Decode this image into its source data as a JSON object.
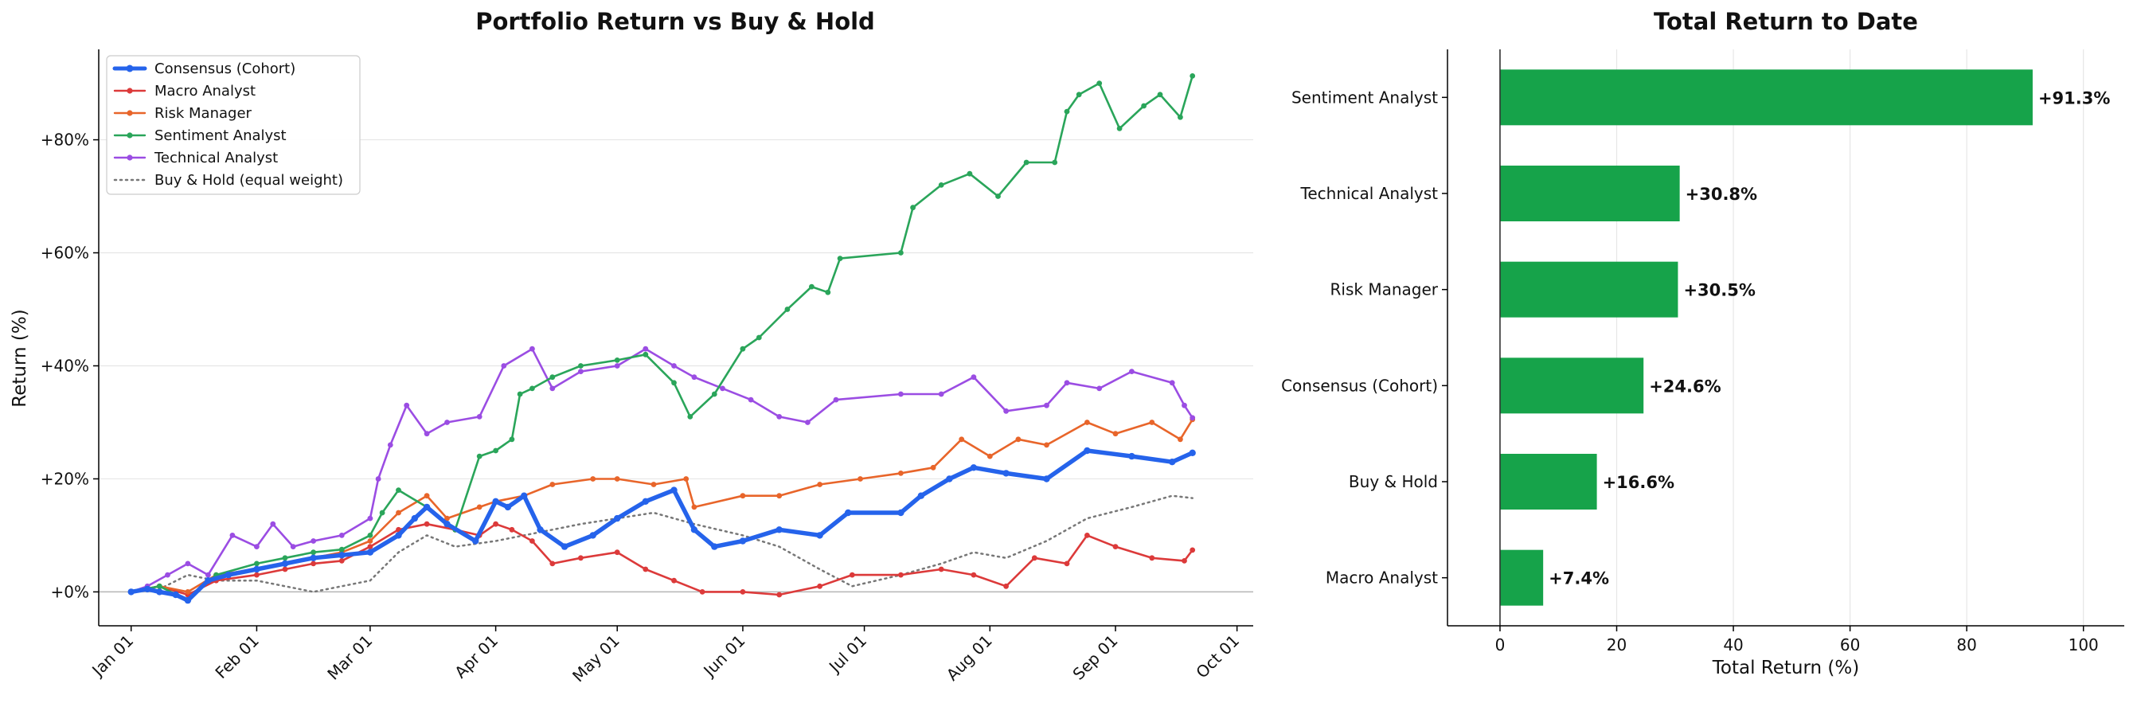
{
  "chart_data": [
    {
      "type": "line",
      "title": "Portfolio Return vs Buy & Hold",
      "xlabel": "",
      "ylabel": "Return (%)",
      "x_ticks": [
        "Jan 01",
        "Feb 01",
        "Mar 01",
        "Apr 01",
        "May 01",
        "Jun 01",
        "Jul 01",
        "Aug 01",
        "Sep 01",
        "Oct 01"
      ],
      "y_ticks": [
        "+0%",
        "+20%",
        "+40%",
        "+60%",
        "+80%"
      ],
      "ylim": [
        -6,
        96
      ],
      "xlim": [
        "2024-12-24",
        "2025-10-05"
      ],
      "grid": "horizontal",
      "legend_position": "top-left",
      "series": [
        {
          "name": "Consensus (Cohort)",
          "color": "#2563eb",
          "style": "bold",
          "points": [
            [
              "2025-01-01",
              0
            ],
            [
              "2025-01-05",
              0.5
            ],
            [
              "2025-01-08",
              0
            ],
            [
              "2025-01-12",
              -0.5
            ],
            [
              "2025-01-15",
              -1.5
            ],
            [
              "2025-01-20",
              2
            ],
            [
              "2025-01-25",
              3
            ],
            [
              "2025-02-01",
              4
            ],
            [
              "2025-02-08",
              5
            ],
            [
              "2025-02-15",
              6
            ],
            [
              "2025-02-22",
              6.5
            ],
            [
              "2025-03-01",
              7
            ],
            [
              "2025-03-08",
              10
            ],
            [
              "2025-03-12",
              13
            ],
            [
              "2025-03-15",
              15
            ],
            [
              "2025-03-20",
              12
            ],
            [
              "2025-03-27",
              9
            ],
            [
              "2025-04-01",
              16
            ],
            [
              "2025-04-04",
              15
            ],
            [
              "2025-04-08",
              17
            ],
            [
              "2025-04-12",
              11
            ],
            [
              "2025-04-18",
              8
            ],
            [
              "2025-04-25",
              10
            ],
            [
              "2025-05-01",
              13
            ],
            [
              "2025-05-08",
              16
            ],
            [
              "2025-05-15",
              18
            ],
            [
              "2025-05-20",
              11
            ],
            [
              "2025-05-25",
              8
            ],
            [
              "2025-06-01",
              9
            ],
            [
              "2025-06-10",
              11
            ],
            [
              "2025-06-20",
              10
            ],
            [
              "2025-06-27",
              14
            ],
            [
              "2025-07-10",
              14
            ],
            [
              "2025-07-15",
              17
            ],
            [
              "2025-07-22",
              20
            ],
            [
              "2025-07-28",
              22
            ],
            [
              "2025-08-05",
              21
            ],
            [
              "2025-08-15",
              20
            ],
            [
              "2025-08-25",
              25
            ],
            [
              "2025-09-05",
              24
            ],
            [
              "2025-09-15",
              23
            ],
            [
              "2025-09-20",
              24.6
            ]
          ]
        },
        {
          "name": "Macro Analyst",
          "color": "#dc3a3a",
          "style": "marker",
          "points": [
            [
              "2025-01-01",
              0
            ],
            [
              "2025-01-08",
              1
            ],
            [
              "2025-01-15",
              -0.5
            ],
            [
              "2025-01-22",
              2
            ],
            [
              "2025-02-01",
              3
            ],
            [
              "2025-02-08",
              4
            ],
            [
              "2025-02-15",
              5
            ],
            [
              "2025-02-22",
              5.5
            ],
            [
              "2025-03-01",
              8
            ],
            [
              "2025-03-08",
              11
            ],
            [
              "2025-03-15",
              12
            ],
            [
              "2025-03-22",
              11
            ],
            [
              "2025-03-28",
              10
            ],
            [
              "2025-04-01",
              12
            ],
            [
              "2025-04-05",
              11
            ],
            [
              "2025-04-10",
              9
            ],
            [
              "2025-04-15",
              5
            ],
            [
              "2025-04-22",
              6
            ],
            [
              "2025-05-01",
              7
            ],
            [
              "2025-05-08",
              4
            ],
            [
              "2025-05-15",
              2
            ],
            [
              "2025-05-22",
              0
            ],
            [
              "2025-06-01",
              0
            ],
            [
              "2025-06-10",
              -0.5
            ],
            [
              "2025-06-20",
              1
            ],
            [
              "2025-06-28",
              3
            ],
            [
              "2025-07-10",
              3
            ],
            [
              "2025-07-20",
              4
            ],
            [
              "2025-07-28",
              3
            ],
            [
              "2025-08-05",
              1
            ],
            [
              "2025-08-12",
              6
            ],
            [
              "2025-08-20",
              5
            ],
            [
              "2025-08-25",
              10
            ],
            [
              "2025-09-01",
              8
            ],
            [
              "2025-09-10",
              6
            ],
            [
              "2025-09-18",
              5.5
            ],
            [
              "2025-09-20",
              7.4
            ]
          ]
        },
        {
          "name": "Risk Manager",
          "color": "#e8652a",
          "style": "marker",
          "points": [
            [
              "2025-01-01",
              0
            ],
            [
              "2025-01-08",
              1
            ],
            [
              "2025-01-15",
              0
            ],
            [
              "2025-01-22",
              3
            ],
            [
              "2025-02-01",
              4
            ],
            [
              "2025-02-08",
              5
            ],
            [
              "2025-02-15",
              6
            ],
            [
              "2025-02-22",
              7
            ],
            [
              "2025-03-01",
              9
            ],
            [
              "2025-03-08",
              14
            ],
            [
              "2025-03-15",
              17
            ],
            [
              "2025-03-20",
              13
            ],
            [
              "2025-03-28",
              15
            ],
            [
              "2025-04-01",
              16
            ],
            [
              "2025-04-08",
              17
            ],
            [
              "2025-04-15",
              19
            ],
            [
              "2025-04-25",
              20
            ],
            [
              "2025-05-01",
              20
            ],
            [
              "2025-05-10",
              19
            ],
            [
              "2025-05-18",
              20
            ],
            [
              "2025-05-20",
              15
            ],
            [
              "2025-06-01",
              17
            ],
            [
              "2025-06-10",
              17
            ],
            [
              "2025-06-20",
              19
            ],
            [
              "2025-06-30",
              20
            ],
            [
              "2025-07-10",
              21
            ],
            [
              "2025-07-18",
              22
            ],
            [
              "2025-07-25",
              27
            ],
            [
              "2025-08-01",
              24
            ],
            [
              "2025-08-08",
              27
            ],
            [
              "2025-08-15",
              26
            ],
            [
              "2025-08-25",
              30
            ],
            [
              "2025-09-01",
              28
            ],
            [
              "2025-09-10",
              30
            ],
            [
              "2025-09-17",
              27
            ],
            [
              "2025-09-20",
              30.5
            ]
          ]
        },
        {
          "name": "Sentiment Analyst",
          "color": "#2aa55a",
          "style": "marker",
          "points": [
            [
              "2025-01-01",
              0
            ],
            [
              "2025-01-08",
              1
            ],
            [
              "2025-01-15",
              -1.5
            ],
            [
              "2025-01-22",
              3
            ],
            [
              "2025-02-01",
              5
            ],
            [
              "2025-02-08",
              6
            ],
            [
              "2025-02-15",
              7
            ],
            [
              "2025-02-22",
              7.5
            ],
            [
              "2025-03-01",
              10
            ],
            [
              "2025-03-04",
              14
            ],
            [
              "2025-03-08",
              18
            ],
            [
              "2025-03-15",
              15
            ],
            [
              "2025-03-22",
              11
            ],
            [
              "2025-03-28",
              24
            ],
            [
              "2025-04-01",
              25
            ],
            [
              "2025-04-05",
              27
            ],
            [
              "2025-04-07",
              35
            ],
            [
              "2025-04-10",
              36
            ],
            [
              "2025-04-15",
              38
            ],
            [
              "2025-04-22",
              40
            ],
            [
              "2025-05-01",
              41
            ],
            [
              "2025-05-08",
              42
            ],
            [
              "2025-05-15",
              37
            ],
            [
              "2025-05-19",
              31
            ],
            [
              "2025-05-25",
              35
            ],
            [
              "2025-06-01",
              43
            ],
            [
              "2025-06-05",
              45
            ],
            [
              "2025-06-12",
              50
            ],
            [
              "2025-06-18",
              54
            ],
            [
              "2025-06-22",
              53
            ],
            [
              "2025-06-25",
              59
            ],
            [
              "2025-07-10",
              60
            ],
            [
              "2025-07-13",
              68
            ],
            [
              "2025-07-20",
              72
            ],
            [
              "2025-07-27",
              74
            ],
            [
              "2025-08-03",
              70
            ],
            [
              "2025-08-10",
              76
            ],
            [
              "2025-08-17",
              76
            ],
            [
              "2025-08-20",
              85
            ],
            [
              "2025-08-23",
              88
            ],
            [
              "2025-08-28",
              90
            ],
            [
              "2025-09-02",
              82
            ],
            [
              "2025-09-08",
              86
            ],
            [
              "2025-09-12",
              88
            ],
            [
              "2025-09-17",
              84
            ],
            [
              "2025-09-20",
              91.3
            ]
          ]
        },
        {
          "name": "Technical Analyst",
          "color": "#9b4de3",
          "style": "marker",
          "points": [
            [
              "2025-01-01",
              0
            ],
            [
              "2025-01-05",
              1
            ],
            [
              "2025-01-10",
              3
            ],
            [
              "2025-01-15",
              5
            ],
            [
              "2025-01-20",
              3
            ],
            [
              "2025-01-26",
              10
            ],
            [
              "2025-02-01",
              8
            ],
            [
              "2025-02-05",
              12
            ],
            [
              "2025-02-10",
              8
            ],
            [
              "2025-02-15",
              9
            ],
            [
              "2025-02-22",
              10
            ],
            [
              "2025-03-01",
              13
            ],
            [
              "2025-03-03",
              20
            ],
            [
              "2025-03-06",
              26
            ],
            [
              "2025-03-10",
              33
            ],
            [
              "2025-03-15",
              28
            ],
            [
              "2025-03-20",
              30
            ],
            [
              "2025-03-28",
              31
            ],
            [
              "2025-04-03",
              40
            ],
            [
              "2025-04-10",
              43
            ],
            [
              "2025-04-15",
              36
            ],
            [
              "2025-04-22",
              39
            ],
            [
              "2025-05-01",
              40
            ],
            [
              "2025-05-08",
              43
            ],
            [
              "2025-05-15",
              40
            ],
            [
              "2025-05-20",
              38
            ],
            [
              "2025-05-27",
              36
            ],
            [
              "2025-06-03",
              34
            ],
            [
              "2025-06-10",
              31
            ],
            [
              "2025-06-17",
              30
            ],
            [
              "2025-06-24",
              34
            ],
            [
              "2025-07-10",
              35
            ],
            [
              "2025-07-20",
              35
            ],
            [
              "2025-07-28",
              38
            ],
            [
              "2025-08-05",
              32
            ],
            [
              "2025-08-15",
              33
            ],
            [
              "2025-08-20",
              37
            ],
            [
              "2025-08-28",
              36
            ],
            [
              "2025-09-05",
              39
            ],
            [
              "2025-09-15",
              37
            ],
            [
              "2025-09-18",
              33
            ],
            [
              "2025-09-20",
              30.8
            ]
          ]
        },
        {
          "name": "Buy & Hold (equal weight)",
          "color": "#777777",
          "style": "dotted",
          "points": [
            [
              "2025-01-01",
              0
            ],
            [
              "2025-01-08",
              0.5
            ],
            [
              "2025-01-15",
              3
            ],
            [
              "2025-01-22",
              2
            ],
            [
              "2025-02-01",
              2
            ],
            [
              "2025-02-08",
              1
            ],
            [
              "2025-02-15",
              0
            ],
            [
              "2025-02-22",
              1
            ],
            [
              "2025-03-01",
              2
            ],
            [
              "2025-03-08",
              7
            ],
            [
              "2025-03-15",
              10
            ],
            [
              "2025-03-22",
              8
            ],
            [
              "2025-04-01",
              9
            ],
            [
              "2025-04-08",
              10
            ],
            [
              "2025-04-15",
              11
            ],
            [
              "2025-04-22",
              12
            ],
            [
              "2025-05-01",
              13
            ],
            [
              "2025-05-10",
              14
            ],
            [
              "2025-05-20",
              12
            ],
            [
              "2025-06-01",
              10
            ],
            [
              "2025-06-10",
              8
            ],
            [
              "2025-06-20",
              4
            ],
            [
              "2025-06-28",
              1
            ],
            [
              "2025-07-10",
              3
            ],
            [
              "2025-07-20",
              5
            ],
            [
              "2025-07-28",
              7
            ],
            [
              "2025-08-05",
              6
            ],
            [
              "2025-08-15",
              9
            ],
            [
              "2025-08-25",
              13
            ],
            [
              "2025-09-05",
              15
            ],
            [
              "2025-09-15",
              17
            ],
            [
              "2025-09-20",
              16.6
            ]
          ]
        }
      ]
    },
    {
      "type": "bar",
      "orientation": "horizontal",
      "title": "Total Return to Date",
      "xlabel": "Total Return (%)",
      "ylabel": "",
      "xlim": [
        -9,
        107
      ],
      "x_ticks": [
        0,
        20,
        40,
        60,
        80,
        100
      ],
      "grid": "vertical",
      "bar_color": "#16a34a",
      "categories": [
        "Sentiment Analyst",
        "Technical Analyst",
        "Risk Manager",
        "Consensus (Cohort)",
        "Buy & Hold",
        "Macro Analyst"
      ],
      "values": [
        91.3,
        30.8,
        30.5,
        24.6,
        16.6,
        7.4
      ],
      "value_labels": [
        "+91.3%",
        "+30.8%",
        "+30.5%",
        "+24.6%",
        "+16.6%",
        "+7.4%"
      ]
    }
  ]
}
